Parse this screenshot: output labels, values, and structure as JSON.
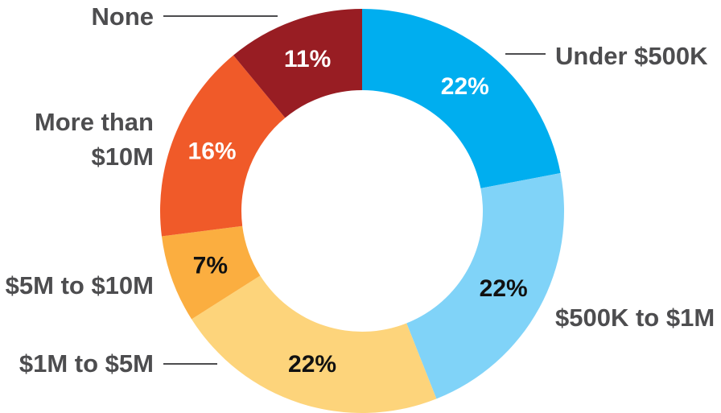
{
  "chart_data": {
    "type": "pie",
    "variant": "donut",
    "categories": [
      "Under $500K",
      "$500K to $1M",
      "$1M to $5M",
      "$5M to $10M",
      "More than $10M",
      "None"
    ],
    "values": [
      22,
      22,
      22,
      7,
      16,
      11
    ],
    "value_labels": [
      "22%",
      "22%",
      "22%",
      "7%",
      "16%",
      "11%"
    ],
    "colors": [
      "#00aeef",
      "#80d3f8",
      "#fdd47b",
      "#fbae40",
      "#f05a29",
      "#981d23"
    ],
    "label_colors": [
      "#ffffff",
      "#111111",
      "#111111",
      "#111111",
      "#ffffff",
      "#ffffff"
    ],
    "title": ""
  }
}
